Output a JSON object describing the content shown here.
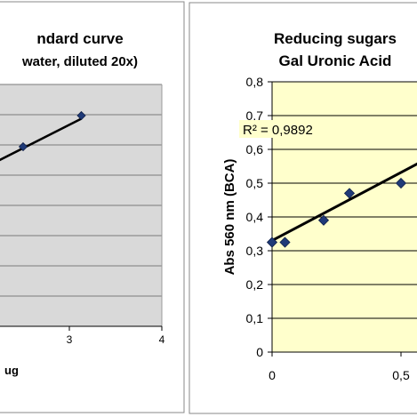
{
  "chart_data": [
    {
      "type": "scatter",
      "title": "ndard curve",
      "subtitle": "water, diluted 20x)",
      "xlabel": "ug",
      "ylabel": "",
      "x_ticks": [
        "3",
        "4"
      ],
      "xlim": [
        0,
        4
      ],
      "series": [
        {
          "x": [
            2.5,
            3.13
          ],
          "y": [
            0.59,
            0.64
          ]
        }
      ],
      "trendline": {
        "type": "linear",
        "points": [
          [
            2.0,
            0.55
          ],
          [
            3.13,
            0.635
          ]
        ]
      },
      "grid": true,
      "plot_background": "#d9d9d9",
      "marker_color": "#1f3a78",
      "line_color": "#000000"
    },
    {
      "type": "scatter",
      "title": "Reducing sugars",
      "subtitle": "Gal Uronic Acid",
      "xlabel": "",
      "ylabel": "Abs 560 nm (BCA)",
      "x_ticks": [
        "0",
        "0,5"
      ],
      "y_ticks": [
        "0",
        "0,1",
        "0,2",
        "0,3",
        "0,4",
        "0,5",
        "0,6",
        "0,7",
        "0,8"
      ],
      "xlim": [
        -0.03,
        0.57
      ],
      "ylim": [
        0,
        0.8
      ],
      "annotation": "R² = 0,9892",
      "series": [
        {
          "x": [
            0,
            0.05,
            0.2,
            0.3,
            0.5
          ],
          "y": [
            0.325,
            0.325,
            0.39,
            0.47,
            0.5
          ]
        }
      ],
      "trendline": {
        "type": "linear",
        "points": [
          [
            0.0,
            0.33
          ],
          [
            0.57,
            0.56
          ]
        ]
      },
      "grid": true,
      "plot_background": "#ffffcc",
      "marker_color": "#1f3a78",
      "line_color": "#000000"
    }
  ]
}
